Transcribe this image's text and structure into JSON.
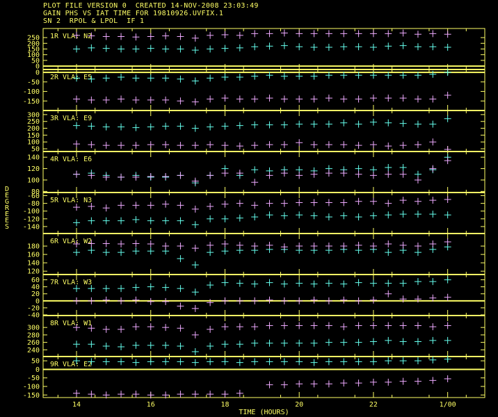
{
  "header": {
    "line1": "PLOT FILE VERSION 0  CREATED 14-NOV-2008 23:03:49",
    "line2": "GAIN PHS VS IAT TIME FOR 19810926.UVFIX.1",
    "line3": "SN 2  RPOL & LPOL  IF 1"
  },
  "colors": {
    "frame": "#ffff66",
    "rpol": "#66ffee",
    "lpol": "#eeaaff",
    "background": "#000000"
  },
  "chart_data": {
    "type": "scatter",
    "xlabel": "TIME (HOURS)",
    "ylabel": "DEGREES",
    "xlim": [
      13.1,
      25.0
    ],
    "x_ticks": [
      14,
      16,
      18,
      20,
      22,
      24
    ],
    "x_tick_labels": [
      "14",
      "16",
      "18",
      "20",
      "22",
      "1/00"
    ],
    "times": [
      14.0,
      14.4,
      14.8,
      15.2,
      15.6,
      16.0,
      16.4,
      16.8,
      17.2,
      17.6,
      18.0,
      18.4,
      18.8,
      19.2,
      19.6,
      20.0,
      20.4,
      20.8,
      21.2,
      21.6,
      22.0,
      22.4,
      22.8,
      23.2,
      23.6,
      24.0
    ],
    "panels": [
      {
        "label": "1R VLA: N2",
        "ylim": [
          -30,
          330
        ],
        "yticks": [
          0,
          50,
          100,
          150,
          200,
          250
        ],
        "rpol": [
          150,
          160,
          155,
          150,
          150,
          155,
          150,
          150,
          140,
          150,
          155,
          160,
          170,
          175,
          180,
          170,
          165,
          165,
          170,
          170,
          165,
          175,
          180,
          170,
          170,
          165
        ],
        "lpol": [
          270,
          265,
          260,
          260,
          255,
          260,
          265,
          260,
          245,
          270,
          275,
          270,
          285,
          285,
          290,
          285,
          285,
          285,
          285,
          285,
          285,
          285,
          290,
          280,
          285,
          280
        ]
      },
      {
        "label": "2R VLA: E5",
        "ylim": [
          -200,
          15
        ],
        "yticks": [
          0,
          -50,
          -100,
          -150
        ],
        "rpol": [
          -30,
          -35,
          -30,
          -25,
          -30,
          -30,
          -30,
          -35,
          -45,
          -30,
          -25,
          -25,
          -20,
          -15,
          -20,
          -20,
          -20,
          -15,
          -15,
          -15,
          -15,
          -15,
          -15,
          -15,
          -10,
          0
        ],
        "lpol": [
          -140,
          -145,
          -145,
          -140,
          -145,
          -145,
          -145,
          -150,
          -155,
          -140,
          -135,
          -140,
          -140,
          -135,
          -140,
          -140,
          -140,
          -135,
          -140,
          -140,
          -135,
          -135,
          -135,
          -140,
          -140,
          -120
        ]
      },
      {
        "label": "3R VLA: E9",
        "ylim": [
          30,
          330
        ],
        "yticks": [
          50,
          100,
          150,
          200,
          250,
          300
        ],
        "rpol": [
          220,
          215,
          210,
          210,
          205,
          210,
          215,
          215,
          200,
          210,
          215,
          220,
          225,
          225,
          225,
          230,
          230,
          230,
          240,
          230,
          245,
          240,
          235,
          230,
          230,
          270
        ],
        "lpol": [
          85,
          80,
          75,
          75,
          75,
          80,
          80,
          75,
          75,
          80,
          75,
          70,
          75,
          80,
          80,
          95,
          80,
          80,
          80,
          75,
          80,
          70,
          75,
          80,
          100,
          45
        ]
      },
      {
        "label": "4R VLA: E6",
        "ylim": [
          78,
          150
        ],
        "yticks": [
          80,
          100,
          120,
          140
        ],
        "rpol": [
          110,
          112,
          108,
          105,
          108,
          105,
          105,
          108,
          95,
          108,
          120,
          108,
          118,
          116,
          118,
          118,
          116,
          120,
          118,
          120,
          118,
          122,
          122,
          110,
          118,
          140
        ],
        "lpol": [
          110,
          108,
          105,
          105,
          105,
          106,
          106,
          108,
          98,
          108,
          112,
          112,
          96,
          108,
          112,
          108,
          110,
          112,
          112,
          110,
          108,
          110,
          110,
          100,
          120,
          134
        ]
      },
      {
        "label": "5R VLA: N3",
        "ylim": [
          -158,
          -52
        ],
        "yticks": [
          -60,
          -80,
          -100,
          -120,
          -140
        ],
        "rpol": [
          -130,
          -125,
          -125,
          -125,
          -122,
          -125,
          -125,
          -125,
          -135,
          -120,
          -120,
          -118,
          -115,
          -110,
          -112,
          -110,
          -112,
          -115,
          -112,
          -115,
          -112,
          -110,
          -108,
          -108,
          -108,
          -110
        ],
        "lpol": [
          -90,
          -88,
          -92,
          -85,
          -85,
          -85,
          -82,
          -85,
          -95,
          -88,
          -82,
          -80,
          -85,
          -80,
          -80,
          -78,
          -78,
          -78,
          -78,
          -75,
          -75,
          -80,
          -72,
          -75,
          -72,
          -70
        ]
      },
      {
        "label": "6R VLA: W2",
        "ylim": [
          112,
          210
        ],
        "yticks": [
          120,
          140,
          160,
          180
        ],
        "rpol": [
          165,
          170,
          165,
          165,
          168,
          168,
          168,
          150,
          135,
          165,
          168,
          170,
          170,
          172,
          172,
          170,
          170,
          170,
          172,
          170,
          172,
          165,
          170,
          165,
          172,
          178
        ],
        "lpol": [
          185,
          186,
          186,
          185,
          186,
          185,
          180,
          180,
          175,
          182,
          185,
          182,
          180,
          182,
          178,
          180,
          180,
          180,
          180,
          182,
          180,
          185,
          182,
          180,
          185,
          190
        ]
      },
      {
        "label": "7R VLA: W3",
        "ylim": [
          -42,
          75
        ],
        "yticks": [
          -40,
          -20,
          0,
          20,
          40,
          60
        ],
        "rpol": [
          35,
          35,
          35,
          35,
          38,
          40,
          38,
          35,
          25,
          45,
          52,
          50,
          48,
          52,
          48,
          50,
          48,
          50,
          48,
          52,
          50,
          50,
          50,
          55,
          55,
          60
        ],
        "lpol": [
          0,
          0,
          2,
          0,
          2,
          -2,
          -2,
          -15,
          -22,
          -5,
          0,
          0,
          0,
          2,
          0,
          0,
          2,
          0,
          2,
          0,
          2,
          20,
          5,
          5,
          8,
          10
        ]
      },
      {
        "label": "8R VLA: W1",
        "ylim": [
          222,
          332
        ],
        "yticks": [
          240,
          260,
          280,
          300
        ],
        "rpol": [
          255,
          255,
          250,
          248,
          252,
          252,
          252,
          250,
          235,
          250,
          255,
          255,
          258,
          258,
          258,
          258,
          258,
          260,
          260,
          260,
          262,
          265,
          262,
          262,
          265,
          265
        ],
        "lpol": [
          300,
          298,
          295,
          295,
          302,
          302,
          300,
          298,
          280,
          295,
          302,
          302,
          302,
          305,
          305,
          305,
          305,
          305,
          302,
          305,
          305,
          305,
          305,
          305,
          302,
          305
        ]
      },
      {
        "label": "9R VLA: E2",
        "ylim": [
          -165,
          75
        ],
        "yticks": [
          50,
          0,
          -50,
          -100,
          -150
        ],
        "rpol": [
          50,
          45,
          45,
          45,
          40,
          45,
          45,
          45,
          40,
          45,
          45,
          40,
          45,
          45,
          45,
          45,
          40,
          45,
          45,
          45,
          45,
          50,
          50,
          50,
          55,
          60
        ],
        "lpol": [
          -140,
          -145,
          -150,
          -145,
          -145,
          -150,
          -150,
          -145,
          -145,
          -145,
          -145,
          -140,
          null,
          -90,
          -90,
          -85,
          -85,
          -85,
          -80,
          -80,
          -75,
          -75,
          -70,
          -70,
          -65,
          -55
        ]
      }
    ]
  }
}
